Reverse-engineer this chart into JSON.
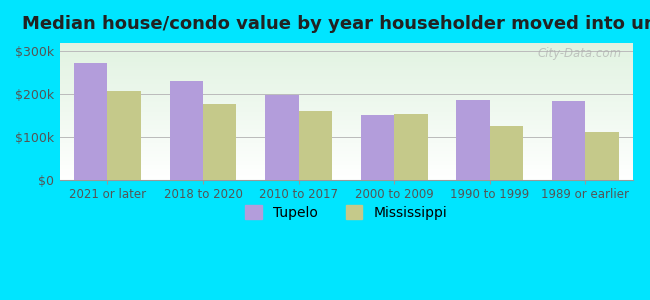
{
  "title": "Median house/condo value by year householder moved into unit",
  "categories": [
    "2021 or later",
    "2018 to 2020",
    "2010 to 2017",
    "2000 to 2009",
    "1990 to 1999",
    "1989 or earlier"
  ],
  "tupelo_values": [
    272000,
    230000,
    198000,
    152000,
    188000,
    185000
  ],
  "mississippi_values": [
    207000,
    178000,
    162000,
    154000,
    127000,
    112000
  ],
  "tupelo_color": "#b39ddb",
  "mississippi_color": "#c5c98a",
  "background_outer": "#00e5ff",
  "ylabel_ticks": [
    0,
    100000,
    200000,
    300000
  ],
  "ylabel_labels": [
    "$0",
    "$100k",
    "$200k",
    "$300k"
  ],
  "ylim": [
    0,
    320000
  ],
  "bar_width": 0.35,
  "legend_tupelo": "Tupelo",
  "legend_mississippi": "Mississippi",
  "watermark": "City-Data.com"
}
